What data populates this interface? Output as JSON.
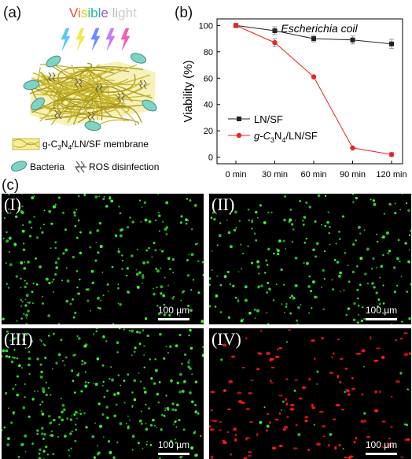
{
  "panels": {
    "a": "(a)",
    "b": "(b)",
    "c": "(c)"
  },
  "schematic": {
    "light_title": "Visible light",
    "light_title_colors": [
      "#e74c3c",
      "#e67e22",
      "#f1c40f",
      "#2ecc71",
      "#1abc9c",
      "#3498db",
      "#9b59b6",
      "#e84393",
      "#bbbbbb",
      "#bbbbbb",
      "#cccccc",
      "#cccccc",
      "#d0d0d0"
    ],
    "bolt_colors": [
      "#5bc8f5",
      "#f5e84b",
      "#6b8cff",
      "#c67bf5",
      "#f55bb4"
    ],
    "membrane_label_prefix": "g-C",
    "membrane_sub1": "3",
    "membrane_mid": "N",
    "membrane_sub2": "4",
    "membrane_suffix": "/LN/SF membrane",
    "bacteria_label": "Bacteria",
    "ros_label": "ROS disinfection"
  },
  "chart_data": {
    "type": "line",
    "title": "Escherichia coil",
    "ylabel": "Viability (%)",
    "xlabel": "",
    "categories": [
      "0 min",
      "30 min",
      "60 min",
      "90 min",
      "120 min"
    ],
    "yticks": [
      0,
      20,
      40,
      60,
      80,
      100
    ],
    "ylim": [
      -5,
      105
    ],
    "series": [
      {
        "name": "LN/SF",
        "values": [
          100,
          96,
          90,
          89,
          86
        ],
        "errors": [
          0,
          3,
          2.5,
          3,
          3.5
        ],
        "color": "#222222",
        "marker": "square"
      },
      {
        "name": "g-C3N4/LN/SF",
        "values": [
          100,
          87,
          61,
          7,
          2
        ],
        "errors": [
          0,
          3,
          0,
          0,
          1.5
        ],
        "color": "#ee2222",
        "marker": "circle"
      }
    ],
    "legend_position": "lower-left"
  },
  "micrographs": [
    {
      "label": "(I)",
      "scale": "100 µm",
      "green": 260,
      "red": 0
    },
    {
      "label": "(II)",
      "scale": "100 µm",
      "green": 240,
      "red": 0
    },
    {
      "label": "(III)",
      "scale": "100 µm",
      "green": 310,
      "red": 0
    },
    {
      "label": "(IV)",
      "scale": "100 µm",
      "green": 22,
      "red": 140
    }
  ]
}
